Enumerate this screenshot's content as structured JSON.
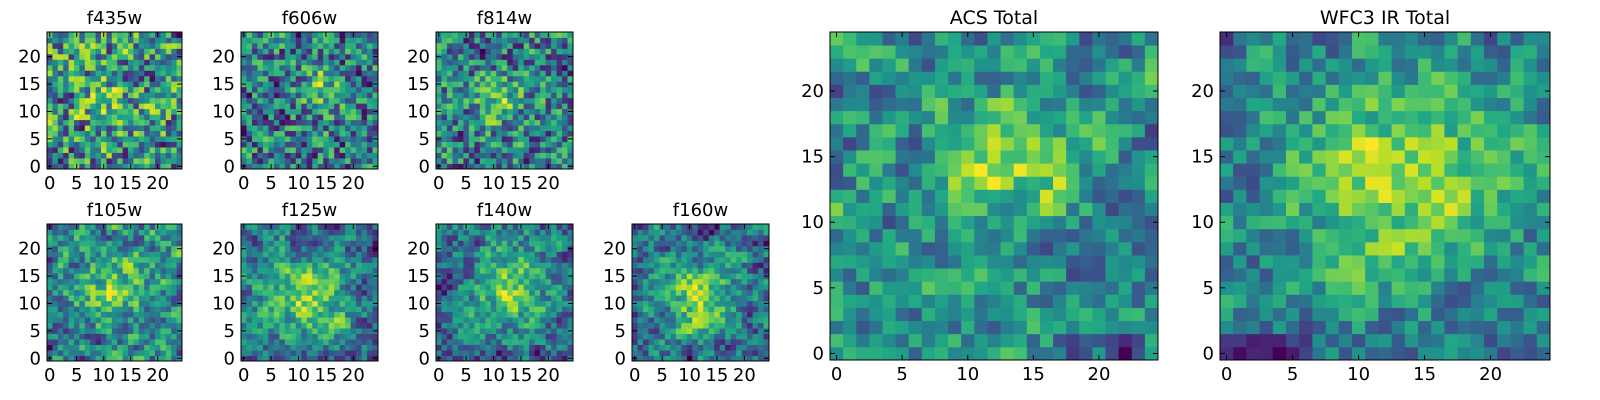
{
  "chart_data": [
    {
      "type": "heatmap",
      "title": "f435w",
      "xticks": [
        0,
        5,
        10,
        15,
        20
      ],
      "yticks": [
        0,
        5,
        10,
        15,
        20
      ],
      "xlim": [
        -0.5,
        24.5
      ],
      "ylim": [
        -0.5,
        24.5
      ],
      "grid": "25x25",
      "colormap": "viridis",
      "description_of_values": "noise",
      "seed": 11,
      "blob": {
        "x": 11,
        "y": 12,
        "strength": 0.15,
        "width": 4
      }
    },
    {
      "type": "heatmap",
      "title": "f606w",
      "xticks": [
        0,
        5,
        10,
        15,
        20
      ],
      "yticks": [
        0,
        5,
        10,
        15,
        20
      ],
      "xlim": [
        -0.5,
        24.5
      ],
      "ylim": [
        -0.5,
        24.5
      ],
      "grid": "25x25",
      "colormap": "viridis",
      "seed": 23,
      "blob": {
        "x": 14,
        "y": 14,
        "strength": 0.35,
        "width": 2.5
      }
    },
    {
      "type": "heatmap",
      "title": "f814w",
      "xticks": [
        0,
        5,
        10,
        15,
        20
      ],
      "yticks": [
        0,
        5,
        10,
        15,
        20
      ],
      "xlim": [
        -0.5,
        24.5
      ],
      "ylim": [
        -0.5,
        24.5
      ],
      "grid": "25x25",
      "colormap": "viridis",
      "seed": 37,
      "blob": {
        "x": 11,
        "y": 12,
        "strength": 0.35,
        "width": 3
      }
    },
    {
      "type": "heatmap",
      "title": "f105w",
      "xticks": [
        0,
        5,
        10,
        15,
        20
      ],
      "yticks": [
        0,
        5,
        10,
        15,
        20
      ],
      "xlim": [
        -0.5,
        24.5
      ],
      "ylim": [
        -0.5,
        24.5
      ],
      "grid": "25x25",
      "colormap": "viridis",
      "seed": 41,
      "blob": {
        "x": 12,
        "y": 13,
        "strength": 0.35,
        "width": 4
      }
    },
    {
      "type": "heatmap",
      "title": "f125w",
      "xticks": [
        0,
        5,
        10,
        15,
        20
      ],
      "yticks": [
        0,
        5,
        10,
        15,
        20
      ],
      "xlim": [
        -0.5,
        24.5
      ],
      "ylim": [
        -0.5,
        24.5
      ],
      "grid": "25x25",
      "colormap": "viridis",
      "seed": 53,
      "blob": {
        "x": 12,
        "y": 11,
        "strength": 0.45,
        "width": 5
      }
    },
    {
      "type": "heatmap",
      "title": "f140w",
      "xticks": [
        0,
        5,
        10,
        15,
        20
      ],
      "yticks": [
        0,
        5,
        10,
        15,
        20
      ],
      "xlim": [
        -0.5,
        24.5
      ],
      "ylim": [
        -0.5,
        24.5
      ],
      "grid": "25x25",
      "colormap": "viridis",
      "seed": 67,
      "blob": {
        "x": 13,
        "y": 13,
        "strength": 0.45,
        "width": 5
      }
    },
    {
      "type": "heatmap",
      "title": "f160w",
      "xticks": [
        0,
        5,
        10,
        15,
        20
      ],
      "yticks": [
        0,
        5,
        10,
        15,
        20
      ],
      "xlim": [
        -0.5,
        24.5
      ],
      "ylim": [
        -0.5,
        24.5
      ],
      "grid": "25x25",
      "colormap": "viridis",
      "seed": 71,
      "blob": {
        "x": 12,
        "y": 11,
        "strength": 0.5,
        "width": 5
      }
    },
    {
      "type": "heatmap",
      "title": "ACS Total",
      "xticks": [
        0,
        5,
        10,
        15,
        20
      ],
      "yticks": [
        0,
        5,
        10,
        15,
        20
      ],
      "xlim": [
        -0.5,
        24.5
      ],
      "ylim": [
        -0.5,
        24.5
      ],
      "grid": "25x25",
      "colormap": "viridis",
      "seed": 83,
      "blob": {
        "x": 13,
        "y": 14,
        "strength": 0.45,
        "width": 3.5
      }
    },
    {
      "type": "heatmap",
      "title": "WFC3 IR Total",
      "xticks": [
        0,
        5,
        10,
        15,
        20
      ],
      "yticks": [
        0,
        5,
        10,
        15,
        20
      ],
      "xlim": [
        -0.5,
        24.5
      ],
      "ylim": [
        -0.5,
        24.5
      ],
      "grid": "25x25",
      "colormap": "viridis",
      "seed": 97,
      "blob": {
        "x": 13,
        "y": 14,
        "strength": 0.55,
        "width": 6
      }
    }
  ]
}
